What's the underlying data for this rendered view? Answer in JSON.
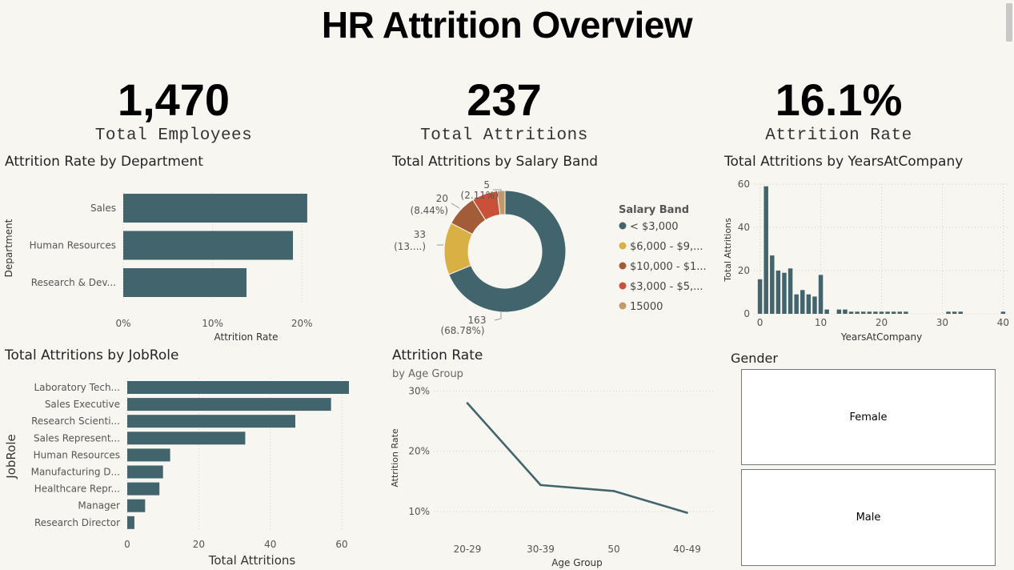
{
  "page": {
    "title": "HR Attrition Overview"
  },
  "kpis": [
    {
      "value": "1,470",
      "label": "Total Employees"
    },
    {
      "value": "237",
      "label": "Total Attritions"
    },
    {
      "value": "16.1%",
      "label": "Attrition Rate"
    }
  ],
  "colors": {
    "primary": "#41646d",
    "salary": [
      "#41646d",
      "#d8b044",
      "#a35c38",
      "#c9513a",
      "#c4996a"
    ]
  },
  "gender": {
    "title": "Gender",
    "options": [
      "Female",
      "Male"
    ]
  },
  "chart_data": [
    {
      "id": "dept",
      "type": "bar",
      "orientation": "horizontal",
      "title": "Attrition Rate by Department",
      "categories": [
        "Sales",
        "Human Resources",
        "Research & Dev..."
      ],
      "values": [
        20.6,
        19.0,
        13.8
      ],
      "xlabel": "Attrition Rate",
      "ylabel": "Department",
      "xlim": [
        0,
        25
      ],
      "xticks": [
        0,
        10,
        20
      ],
      "xtick_labels": [
        "0%",
        "10%",
        "20%"
      ],
      "grid": true
    },
    {
      "id": "salary",
      "type": "pie",
      "donut": true,
      "title": "Total Attritions by Salary Band",
      "legend_title": "Salary Band",
      "legend_position": "right",
      "slices": [
        {
          "label": "< $3,000",
          "value": 163,
          "value_label": "163",
          "pct_label": "(68.78%)"
        },
        {
          "label": "$6,000 - $9,...",
          "value": 33,
          "value_label": "33",
          "pct_label": "(13....)"
        },
        {
          "label": "$10,000 - $1...",
          "value": 20,
          "value_label": "20",
          "pct_label": "(8.44%)"
        },
        {
          "label": "$3,000 - $5,...",
          "value": 16,
          "value_label": "",
          "pct_label": ""
        },
        {
          "label": "15000",
          "value": 5,
          "value_label": "5",
          "pct_label": "(2.11%)"
        }
      ]
    },
    {
      "id": "years",
      "type": "bar",
      "title": "Total Attritions by YearsAtCompany",
      "x": [
        0,
        1,
        2,
        3,
        4,
        5,
        6,
        7,
        8,
        9,
        10,
        11,
        12,
        13,
        14,
        15,
        16,
        17,
        18,
        19,
        20,
        21,
        22,
        23,
        24,
        25,
        26,
        27,
        28,
        29,
        30,
        31,
        32,
        33,
        34,
        35,
        36,
        37,
        38,
        39,
        40
      ],
      "values": [
        16,
        59,
        27,
        20,
        19,
        21,
        9,
        11,
        9,
        8,
        18,
        2,
        0,
        2,
        2,
        1,
        1,
        1,
        1,
        1,
        1,
        1,
        1,
        1,
        1,
        0,
        0,
        0,
        0,
        0,
        0,
        1,
        1,
        1,
        0,
        0,
        0,
        0,
        0,
        0,
        1
      ],
      "xlabel": "YearsAtCompany",
      "ylabel": "Total Attritions",
      "xlim": [
        -1,
        41
      ],
      "ylim": [
        0,
        60
      ],
      "xticks": [
        0,
        10,
        20,
        30,
        40
      ],
      "yticks": [
        0,
        20,
        40,
        60
      ],
      "grid": true
    },
    {
      "id": "jobrole",
      "type": "bar",
      "orientation": "horizontal",
      "title": "Total Attritions by JobRole",
      "categories": [
        "Laboratory Tech...",
        "Sales Executive",
        "Research Scienti...",
        "Sales Represent...",
        "Human Resources",
        "Manufacturing D...",
        "Healthcare Repr...",
        "Manager",
        "Research Director"
      ],
      "values": [
        62,
        57,
        47,
        33,
        12,
        10,
        9,
        5,
        2
      ],
      "xlabel": "Total Attritions",
      "ylabel": "JobRole",
      "xlim": [
        0,
        62
      ],
      "xticks": [
        0,
        20,
        40,
        60
      ],
      "grid": true
    },
    {
      "id": "age",
      "type": "line",
      "title": "Attrition Rate",
      "subtitle": "by Age Group",
      "categories": [
        "20-29",
        "30-39",
        "50",
        "40-49"
      ],
      "values": [
        28.0,
        14.4,
        13.4,
        9.8
      ],
      "xlabel": "Age Group",
      "ylabel": "Attrition Rate",
      "ylim": [
        8,
        31
      ],
      "yticks": [
        10,
        20,
        30
      ],
      "ytick_labels": [
        "10%",
        "20%",
        "30%"
      ],
      "grid": true
    }
  ]
}
